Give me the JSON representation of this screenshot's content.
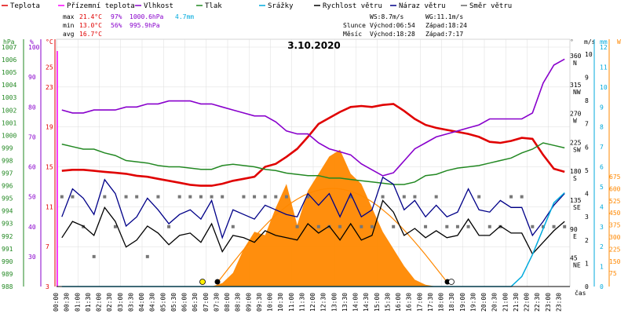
{
  "legend": [
    {
      "label": "Teplota",
      "color": "#e00000"
    },
    {
      "label": "Přízemní teplota",
      "color": "#ff00ff"
    },
    {
      "label": "Vlhkost",
      "color": "#8800cc"
    },
    {
      "label": "Tlak",
      "color": "#228822"
    },
    {
      "label": "Srážky",
      "color": "#00aadd"
    },
    {
      "label": "Rychlost větru",
      "color": "#000000"
    },
    {
      "label": "Náraz větru",
      "color": "#000088"
    },
    {
      "label": "Směr větru",
      "color": "#666666"
    }
  ],
  "stats": {
    "max": {
      "label": "max",
      "temp": "21.4°C",
      "hum": "97%",
      "pres": "1000.6hPa",
      "rain": "4.7mm"
    },
    "min": {
      "label": "min",
      "temp": "13.0°C",
      "hum": "56%",
      "pres": "995.9hPa"
    },
    "avg": {
      "label": "avg",
      "temp": "16.7°C"
    }
  },
  "wind_info": {
    "ws": "WS:8.7m/s",
    "wg": "WG:11.1m/s"
  },
  "sun": {
    "label": "Slunce",
    "rise": "Východ:06:54",
    "set": "Západ:18:24"
  },
  "moon": {
    "label": "Měsíc",
    "rise": "Východ:18:28",
    "set": "Západ:7:17"
  },
  "date": "3.10.2020",
  "axis_units": {
    "hpa": "hPa",
    "pct": "%",
    "degc": "°C",
    "deg": "°",
    "ms": "m/s",
    "mm": "mm",
    "time": "čas"
  },
  "axes": {
    "hpa": [
      "988",
      "989",
      "990",
      "991",
      "992",
      "993",
      "994",
      "995",
      "996",
      "997",
      "998",
      "999",
      "1000",
      "1001",
      "1002",
      "1003",
      "1004",
      "1005",
      "1006",
      "1007"
    ],
    "pct": [
      "30",
      "40",
      "50",
      "60",
      "70",
      "80",
      "90",
      "100"
    ],
    "degc": [
      "3",
      "7",
      "11",
      "15",
      "19",
      "23",
      "25"
    ],
    "dir": [
      "360 N",
      "315 NW",
      "270 W",
      "225 SW",
      "180 S",
      "135 SE",
      "90 E",
      "45 NE"
    ],
    "ms": [
      "0",
      "1",
      "2",
      "3",
      "4",
      "5",
      "6",
      "7",
      "8",
      "9",
      "10"
    ],
    "mm": [
      "0",
      "1",
      "2",
      "3",
      "4",
      "5",
      "6",
      "7",
      "8",
      "9",
      "10",
      "11",
      "12"
    ],
    "solar": [
      "675",
      "600",
      "525",
      "450",
      "375",
      "300",
      "225",
      "150",
      "75"
    ]
  },
  "chart_data": {
    "type": "line",
    "x_labels": [
      "00:00",
      "00:30",
      "01:00",
      "01:30",
      "02:00",
      "02:30",
      "03:00",
      "03:30",
      "04:00",
      "04:30",
      "05:00",
      "05:30",
      "06:00",
      "06:30",
      "07:00",
      "07:30",
      "08:00",
      "08:30",
      "09:00",
      "09:30",
      "10:00",
      "10:30",
      "11:00",
      "11:30",
      "12:00",
      "12:30",
      "13:00",
      "13:30",
      "14:00",
      "14:30",
      "15:00",
      "15:30",
      "16:00",
      "16:30",
      "17:00",
      "17:30",
      "18:00",
      "18:30",
      "19:00",
      "19:30",
      "20:00",
      "20:30",
      "21:00",
      "21:30",
      "22:00",
      "22:30",
      "23:00",
      "23:30"
    ],
    "series": [
      {
        "name": "Teplota",
        "unit": "°C",
        "color": "#e00000",
        "values": [
          14.6,
          14.7,
          14.7,
          14.6,
          14.5,
          14.4,
          14.3,
          14.1,
          14.0,
          13.8,
          13.6,
          13.4,
          13.2,
          13.1,
          13.1,
          13.3,
          13.6,
          13.8,
          14.0,
          15.0,
          15.3,
          16.0,
          16.8,
          18.0,
          19.3,
          19.9,
          20.5,
          21.0,
          21.1,
          21.0,
          21.2,
          21.3,
          20.6,
          19.8,
          19.2,
          18.9,
          18.7,
          18.5,
          18.3,
          18.0,
          17.5,
          17.4,
          17.6,
          17.9,
          17.8,
          16.2,
          14.8,
          14.5
        ]
      },
      {
        "name": "Vlhkost",
        "unit": "%",
        "color": "#8800cc",
        "values": [
          79,
          78,
          78,
          79,
          79,
          79,
          80,
          80,
          81,
          81,
          82,
          82,
          82,
          81,
          81,
          80,
          79,
          78,
          77,
          77,
          75,
          72,
          71,
          71,
          68,
          66,
          65,
          64,
          61,
          59,
          57,
          58,
          62,
          66,
          68,
          70,
          71,
          72,
          73,
          74,
          76,
          76,
          76,
          76,
          78,
          88,
          94,
          96
        ]
      },
      {
        "name": "Tlak",
        "unit": "hPa",
        "color": "#228822",
        "values": [
          999.3,
          999.1,
          998.9,
          998.9,
          998.6,
          998.4,
          998.0,
          997.9,
          997.8,
          997.6,
          997.5,
          997.5,
          997.4,
          997.3,
          997.3,
          997.6,
          997.7,
          997.6,
          997.5,
          997.3,
          997.2,
          997.0,
          996.9,
          996.8,
          996.8,
          996.6,
          996.6,
          996.5,
          996.4,
          996.3,
          996.2,
          996.1,
          996.1,
          996.3,
          996.8,
          996.9,
          997.2,
          997.4,
          997.5,
          997.6,
          997.8,
          998.0,
          998.2,
          998.6,
          998.9,
          999.4,
          999.2,
          999.0
        ]
      },
      {
        "name": "Rychlost větru",
        "unit": "m/s",
        "color": "#000000",
        "values": [
          2.1,
          2.8,
          2.6,
          2.2,
          3.4,
          2.8,
          1.7,
          2.0,
          2.6,
          2.3,
          1.8,
          2.2,
          2.3,
          1.9,
          2.7,
          1.5,
          2.2,
          2.1,
          1.9,
          2.4,
          2.2,
          2.1,
          2.0,
          2.7,
          2.3,
          2.6,
          2.0,
          2.7,
          2.0,
          2.2,
          3.7,
          3.2,
          2.2,
          2.5,
          2.1,
          2.4,
          2.1,
          2.2,
          2.9,
          2.2,
          2.2,
          2.6,
          2.3,
          2.3,
          1.4,
          1.9,
          2.4,
          2.8
        ]
      },
      {
        "name": "Náraz větru",
        "unit": "m/s",
        "color": "#000088",
        "values": [
          3.0,
          4.2,
          3.8,
          3.1,
          4.6,
          4.0,
          2.6,
          3.0,
          3.8,
          3.3,
          2.7,
          3.1,
          3.3,
          2.9,
          3.7,
          2.1,
          3.3,
          3.1,
          2.9,
          3.5,
          3.3,
          3.1,
          3.0,
          4.0,
          3.5,
          4.0,
          3.0,
          4.0,
          3.0,
          3.3,
          4.7,
          4.4,
          3.3,
          3.7,
          3.0,
          3.5,
          3.0,
          3.2,
          4.2,
          3.3,
          3.2,
          3.7,
          3.4,
          3.4,
          2.2,
          2.8,
          3.5,
          4.0
        ]
      },
      {
        "name": "Směr větru",
        "unit": "°",
        "color": "#666666",
        "values": [
          135,
          135,
          90,
          45,
          135,
          90,
          135,
          135,
          45,
          135,
          90,
          135,
          135,
          135,
          135,
          135,
          90,
          135,
          135,
          135,
          135,
          135,
          90,
          135,
          90,
          90,
          90,
          135,
          90,
          90,
          135,
          90,
          135,
          135,
          90,
          135,
          90,
          90,
          90,
          135,
          90,
          90,
          135,
          135,
          90,
          90,
          90,
          90
        ]
      },
      {
        "name": "Srážky",
        "unit": "mm",
        "color": "#00aadd",
        "values": [
          0,
          0,
          0,
          0,
          0,
          0,
          0,
          0,
          0,
          0,
          0,
          0,
          0,
          0,
          0,
          0,
          0,
          0,
          0,
          0,
          0,
          0,
          0,
          0,
          0,
          0,
          0,
          0,
          0,
          0,
          0,
          0,
          0,
          0,
          0,
          0,
          0,
          0,
          0,
          0,
          0,
          0,
          0,
          0.5,
          1.6,
          2.9,
          4.2,
          4.7
        ]
      },
      {
        "name": "Solar",
        "unit": "W/m²",
        "color": "#ff8800",
        "values": [
          0,
          0,
          0,
          0,
          0,
          0,
          0,
          0,
          0,
          0,
          0,
          0,
          0,
          0,
          0,
          10,
          40,
          110,
          160,
          150,
          230,
          300,
          180,
          280,
          330,
          380,
          400,
          330,
          300,
          230,
          160,
          110,
          60,
          20,
          5,
          0,
          0,
          0,
          0,
          0,
          0,
          0,
          0,
          0,
          0,
          0,
          0,
          0
        ]
      }
    ]
  }
}
